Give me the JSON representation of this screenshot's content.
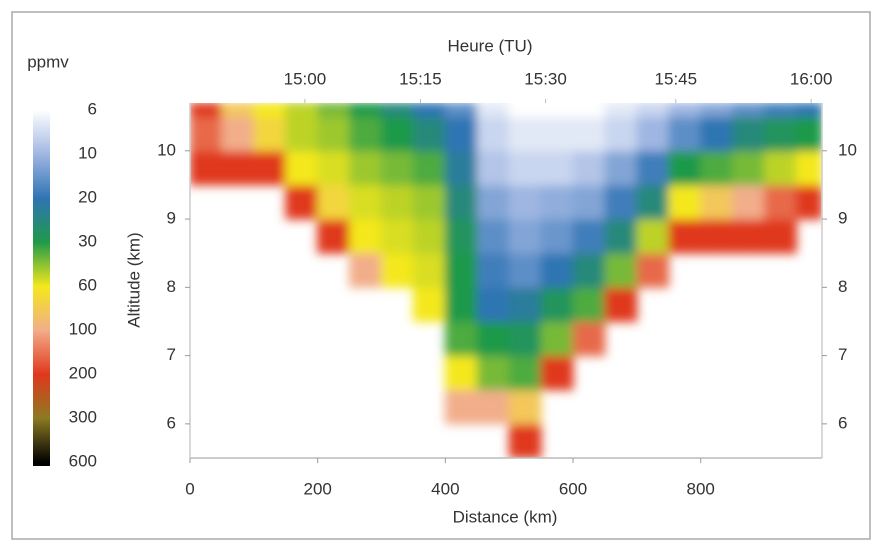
{
  "chart_data": {
    "type": "heatmap",
    "xlabel": "Distance (km)",
    "x2label": "Heure (TU)",
    "ylabel": "Altitude (km)",
    "xlim": [
      0,
      990
    ],
    "ylim": [
      5.5,
      10.7
    ],
    "y2lim": [
      5.5,
      10.7
    ],
    "xticks": [
      0,
      200,
      400,
      600,
      800
    ],
    "x2ticks": [
      {
        "value": 180,
        "label": "15:00"
      },
      {
        "value": 361,
        "label": "15:15"
      },
      {
        "value": 557,
        "label": "15:30"
      },
      {
        "value": 761,
        "label": "15:45"
      },
      {
        "value": 973,
        "label": "16:00"
      }
    ],
    "yticks": [
      6,
      7,
      8,
      9,
      10
    ],
    "y2ticks": [
      6,
      7,
      8,
      9,
      10
    ],
    "xbins": [
      0,
      50,
      100,
      150,
      200,
      250,
      300,
      350,
      400,
      450,
      500,
      550,
      600,
      650,
      700,
      750,
      800,
      850,
      900,
      950,
      990
    ],
    "ybins": [
      5.5,
      6,
      6.5,
      7,
      7.5,
      8,
      8.5,
      9,
      9.5,
      10,
      10.5,
      10.7
    ],
    "z": [
      [
        null,
        null,
        null,
        null,
        null,
        null,
        null,
        null,
        200,
        150,
        200
      ],
      [
        null,
        null,
        null,
        null,
        null,
        null,
        null,
        null,
        200,
        100,
        80
      ],
      [
        null,
        null,
        null,
        null,
        null,
        null,
        null,
        null,
        200,
        70,
        60
      ],
      [
        null,
        null,
        null,
        null,
        null,
        null,
        null,
        200,
        60,
        50,
        50
      ],
      [
        null,
        null,
        null,
        null,
        null,
        null,
        200,
        70,
        55,
        45,
        40
      ],
      [
        null,
        null,
        null,
        null,
        null,
        100,
        60,
        55,
        45,
        35,
        30
      ],
      [
        null,
        null,
        null,
        null,
        null,
        60,
        55,
        50,
        40,
        30,
        25
      ],
      [
        null,
        null,
        null,
        null,
        60,
        55,
        50,
        45,
        35,
        25,
        20
      ],
      [
        null,
        100,
        60,
        35,
        30,
        30,
        28,
        25,
        22,
        20,
        15
      ],
      [
        null,
        100,
        40,
        30,
        20,
        18,
        15,
        12,
        9,
        8,
        7
      ],
      [
        200,
        80,
        35,
        28,
        22,
        15,
        12,
        10,
        8,
        7,
        6
      ],
      [
        null,
        null,
        200,
        40,
        28,
        20,
        14,
        11,
        8,
        7,
        6
      ],
      [
        null,
        null,
        null,
        150,
        35,
        25,
        18,
        12,
        9,
        7,
        6
      ],
      [
        null,
        null,
        null,
        null,
        200,
        40,
        25,
        18,
        12,
        8,
        7
      ],
      [
        null,
        null,
        null,
        null,
        null,
        150,
        50,
        25,
        18,
        10,
        8
      ],
      [
        null,
        null,
        null,
        null,
        null,
        null,
        200,
        60,
        30,
        15,
        10
      ],
      [
        null,
        null,
        null,
        null,
        null,
        null,
        200,
        80,
        35,
        20,
        12
      ],
      [
        null,
        null,
        null,
        null,
        null,
        null,
        200,
        100,
        40,
        25,
        15
      ],
      [
        null,
        null,
        null,
        null,
        null,
        null,
        200,
        150,
        50,
        28,
        18
      ],
      [
        null,
        null,
        null,
        null,
        null,
        null,
        null,
        200,
        60,
        30,
        20
      ]
    ],
    "colorbar": {
      "label": "ppmv",
      "ticks": [
        6,
        10,
        20,
        30,
        60,
        100,
        200,
        300,
        600
      ],
      "colors": [
        "#ffffff",
        "#9fb6e2",
        "#2f74b4",
        "#1f9a4a",
        "#f4e81c",
        "#f2ad8a",
        "#e0381c",
        "#8c7a22",
        "#000000"
      ]
    }
  }
}
